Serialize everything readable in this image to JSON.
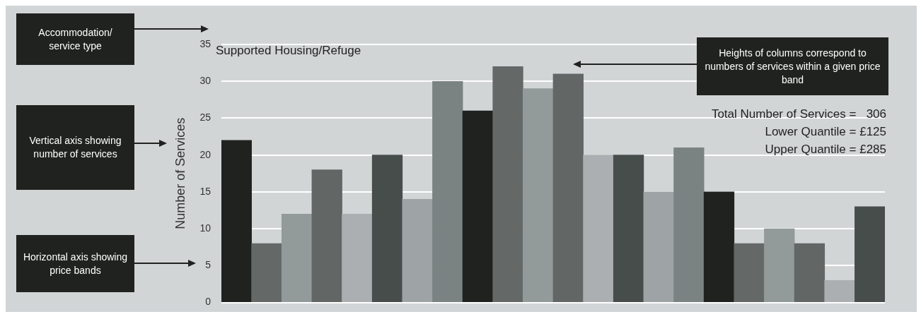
{
  "chart_data": {
    "type": "bar",
    "title": "Supported Housing/Refuge",
    "ylabel": "Number of Services",
    "categories": [
      null,
      null,
      null,
      null,
      null,
      null,
      null,
      null,
      null,
      null,
      null,
      null,
      null,
      null,
      null,
      null,
      null,
      null,
      null,
      null,
      null,
      null
    ],
    "values": [
      22,
      8,
      12,
      18,
      12,
      20,
      14,
      30,
      26,
      32,
      29,
      31,
      20,
      20,
      15,
      21,
      15,
      8,
      10,
      8,
      3,
      13
    ],
    "colors": [
      "#20221f",
      "#646968",
      "#939a9a",
      "#626766",
      "#abafb1",
      "#474d4b",
      "#9ea3a5",
      "#7b8282",
      "#20221f",
      "#646968",
      "#939a9a",
      "#626766",
      "#abafb1",
      "#474d4b",
      "#9ea3a5",
      "#7b8282",
      "#20221f",
      "#646968",
      "#939a9a",
      "#626766",
      "#abafb1",
      "#474d4b"
    ],
    "ylim": [
      0,
      35
    ],
    "yticks": [
      0,
      5,
      10,
      15,
      20,
      25,
      30,
      35
    ],
    "grid": "y",
    "tick_labels": "y",
    "annotations": [
      "Accommodation/ service type",
      "Vertical axis showing number of services",
      "Horizontal axis showing price bands",
      "Heights of columns correspond to numbers of services within a given price band",
      "Total Number of Services =   306",
      "Lower Quantile = £125",
      "Upper Quantile = £285"
    ]
  }
}
